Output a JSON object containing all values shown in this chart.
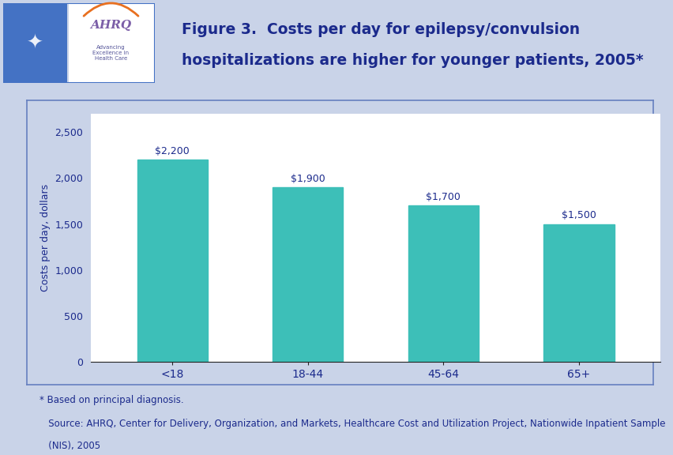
{
  "categories": [
    "<18",
    "18-44",
    "45-64",
    "65+"
  ],
  "values": [
    2200,
    1900,
    1700,
    1500
  ],
  "labels": [
    "$2,200",
    "$1,900",
    "$1,700",
    "$1,500"
  ],
  "bar_color": "#3DBFB8",
  "ylabel": "Costs per day, dollars",
  "ylim": [
    0,
    2700
  ],
  "yticks": [
    0,
    500,
    1000,
    1500,
    2000,
    2500
  ],
  "ytick_labels": [
    "0",
    "500",
    "1,000",
    "1,500",
    "2,000",
    "2,500"
  ],
  "title_line1": "Figure 3.  Costs per day for epilepsy/convulsion",
  "title_line2": "hospitalizations are higher for younger patients, 2005*",
  "title_color": "#1B2A8C",
  "axis_label_color": "#1B2A8C",
  "tick_color": "#1B2A8C",
  "bar_label_color": "#1B2A8C",
  "footnote1": "* Based on principal diagnosis.",
  "footnote2": "   Source: AHRQ, Center for Delivery, Organization, and Markets, Healthcare Cost and Utilization Project, Nationwide Inpatient Sample",
  "footnote3": "   (NIS), 2005",
  "page_bg": "#C9D3E8",
  "header_bg": "#FFFFFF",
  "chart_area_bg": "#C9D3E8",
  "plot_bg": "#FFFFFF",
  "divider_dark": "#1B2A8C",
  "divider_light": "#6680C0",
  "chart_border_color": "#6680C0"
}
